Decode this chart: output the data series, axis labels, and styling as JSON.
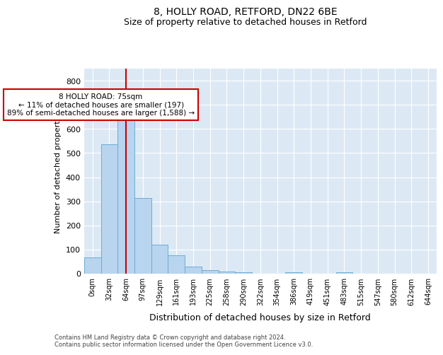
{
  "title_line1": "8, HOLLY ROAD, RETFORD, DN22 6BE",
  "title_line2": "Size of property relative to detached houses in Retford",
  "xlabel": "Distribution of detached houses by size in Retford",
  "ylabel": "Number of detached properties",
  "bar_labels": [
    "0sqm",
    "32sqm",
    "64sqm",
    "97sqm",
    "129sqm",
    "161sqm",
    "193sqm",
    "225sqm",
    "258sqm",
    "290sqm",
    "322sqm",
    "354sqm",
    "386sqm",
    "419sqm",
    "451sqm",
    "483sqm",
    "515sqm",
    "547sqm",
    "580sqm",
    "612sqm",
    "644sqm"
  ],
  "bar_values": [
    67,
    535,
    635,
    313,
    120,
    77,
    30,
    15,
    10,
    5,
    0,
    0,
    5,
    0,
    0,
    5,
    0,
    0,
    0,
    0,
    0
  ],
  "bar_color": "#b8d4ee",
  "bar_edge_color": "#6baed6",
  "background_color": "#dce9f5",
  "grid_color": "#ffffff",
  "vline_x": 2.0,
  "vline_color": "#cc0000",
  "annotation_text": "8 HOLLY ROAD: 75sqm\n← 11% of detached houses are smaller (197)\n89% of semi-detached houses are larger (1,588) →",
  "annotation_box_color": "#cc0000",
  "ylim": [
    0,
    850
  ],
  "yticks": [
    0,
    100,
    200,
    300,
    400,
    500,
    600,
    700,
    800
  ],
  "footnote": "Contains HM Land Registry data © Crown copyright and database right 2024.\nContains public sector information licensed under the Open Government Licence v3.0."
}
